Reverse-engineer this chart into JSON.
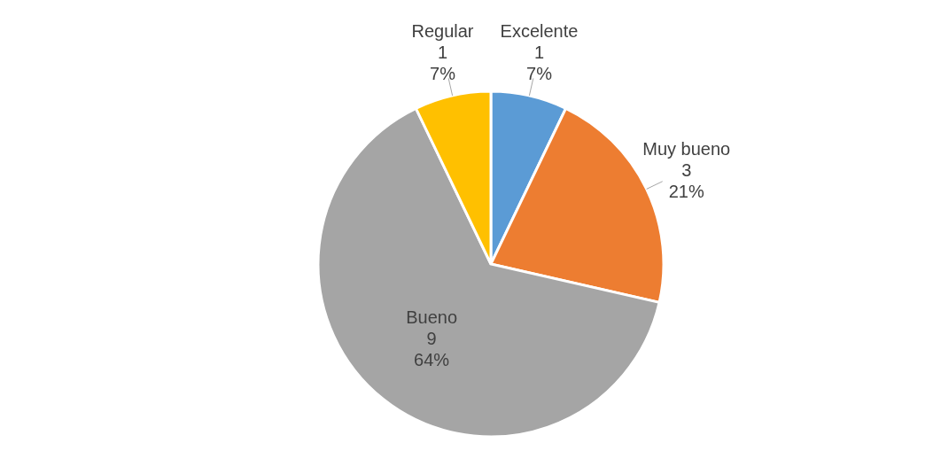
{
  "chart_data": {
    "type": "pie",
    "categories": [
      "Excelente",
      "Muy bueno",
      "Bueno",
      "Regular"
    ],
    "values": [
      1,
      3,
      9,
      1
    ],
    "colors": [
      "#5b9bd5",
      "#ed7d31",
      "#a5a5a5",
      "#ffc000"
    ],
    "value_labels": [
      "1\n7%",
      "3\n21%",
      "9\n64%",
      "1\n7%"
    ],
    "legend": false
  }
}
